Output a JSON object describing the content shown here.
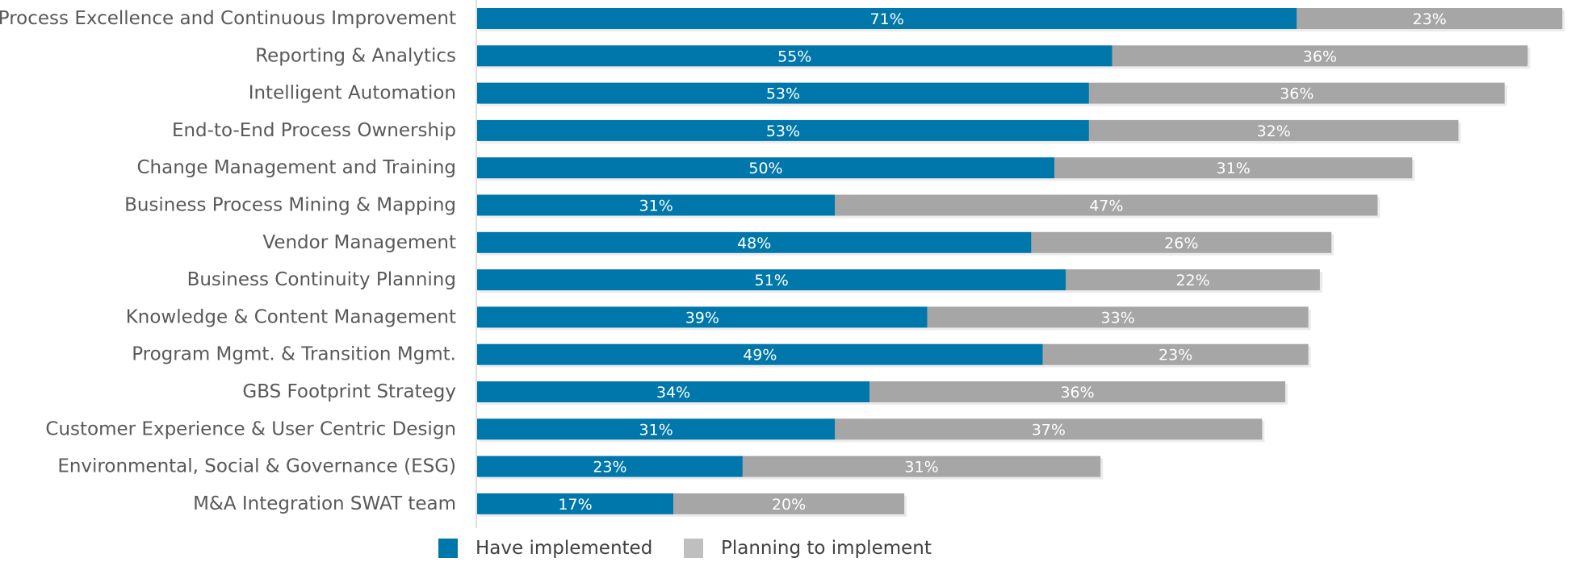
{
  "chart_data": {
    "type": "bar",
    "orientation": "horizontal",
    "stacked": true,
    "categories": [
      "Process Excellence and Continuous Improvement",
      "Reporting & Analytics",
      "Intelligent Automation",
      "End-to-End Process Ownership",
      "Change Management and Training",
      "Business Process Mining & Mapping",
      "Vendor Management",
      "Business Continuity Planning",
      "Knowledge & Content Management",
      "Program Mgmt. & Transition Mgmt.",
      "GBS Footprint Strategy",
      "Customer Experience & User Centric Design",
      "Environmental, Social & Governance (ESG)",
      "M&A Integration SWAT team"
    ],
    "series": [
      {
        "name": "Have implemented",
        "color": "#0077AA",
        "values": [
          71,
          55,
          53,
          53,
          50,
          31,
          48,
          51,
          39,
          49,
          34,
          31,
          23,
          17
        ],
        "labels": [
          "71%",
          "55%",
          "53%",
          "53%",
          "50%",
          "31%",
          "48%",
          "51%",
          "39%",
          "49%",
          "34%",
          "31%",
          "23%",
          "17%"
        ]
      },
      {
        "name": "Planning to implement",
        "color": "#A6A6A6",
        "values": [
          23,
          36,
          36,
          32,
          31,
          47,
          26,
          22,
          33,
          23,
          36,
          37,
          31,
          20
        ],
        "labels": [
          "23%",
          "36%",
          "36%",
          "32%",
          "31%",
          "47%",
          "26%",
          "22%",
          "33%",
          "23%",
          "36%",
          "37%",
          "31%",
          "20%"
        ]
      }
    ],
    "xlim": [
      0,
      100
    ],
    "grid": false,
    "legend_position": "bottom",
    "title": "",
    "xlabel": "",
    "ylabel": ""
  },
  "legend": {
    "have_implemented": "Have implemented",
    "planning_to_implement": "Planning to implement"
  },
  "colors": {
    "implemented": "#0077AA",
    "planning": "#A6A6A6"
  }
}
